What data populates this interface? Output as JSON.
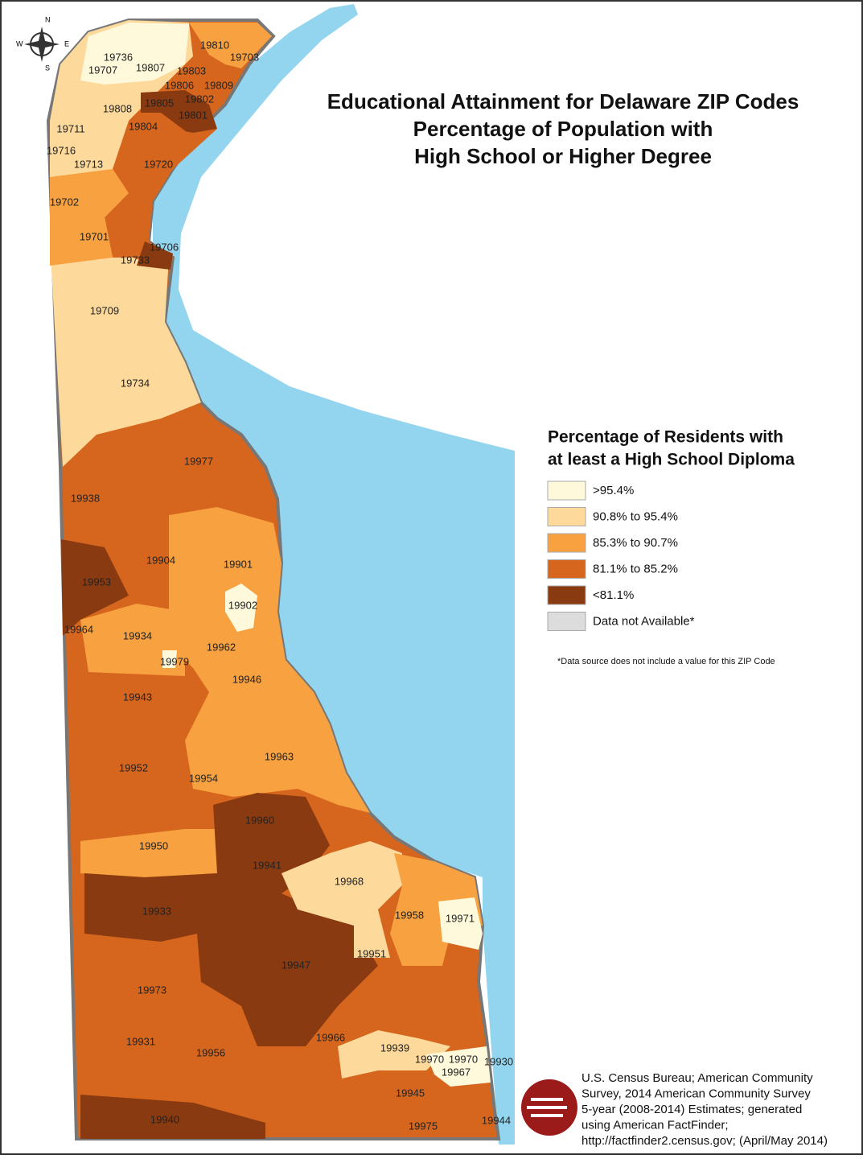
{
  "title": [
    "Educational Attainment for Delaware ZIP Codes",
    "Percentage of Population with",
    "High School or Higher Degree"
  ],
  "legend": {
    "title": [
      "Percentage of Residents with",
      "at least a High School Diploma"
    ],
    "items": [
      {
        "label": ">95.4%",
        "color": "#fff9dc"
      },
      {
        "label": "90.8% to 95.4%",
        "color": "#fdd99b"
      },
      {
        "label": "85.3% to 90.7%",
        "color": "#f7a140"
      },
      {
        "label": "81.1% to 85.2%",
        "color": "#d6661e"
      },
      {
        "label": "<81.1%",
        "color": "#8a3a10"
      },
      {
        "label": "Data not Available*",
        "color": "#dcdcdc"
      }
    ],
    "note": "*Data source does not include a value for this ZIP Code"
  },
  "source": [
    "U.S. Census Bureau; American Community",
    "Survey, 2014 American Community Survey",
    "5-year (2008-2014) Estimates; generated",
    "using American FactFinder;",
    "http://factfinder2.census.gov; (April/May 2014)"
  ],
  "compass": [
    "N",
    "E",
    "S",
    "W"
  ],
  "zip_labels": [
    "19810",
    "19703",
    "19736",
    "19707",
    "19807",
    "19803",
    "19806",
    "19809",
    "19805",
    "19802",
    "19808",
    "19801",
    "19711",
    "19804",
    "19716",
    "19713",
    "19720",
    "19702",
    "19701",
    "19706",
    "19733",
    "19709",
    "19734",
    "19977",
    "19938",
    "19904",
    "19901",
    "19953",
    "19902",
    "19964",
    "19934",
    "19962",
    "19979",
    "19946",
    "19943",
    "19963",
    "19952",
    "19954",
    "19960",
    "19950",
    "19941",
    "19968",
    "19933",
    "19958",
    "19971",
    "19951",
    "19947",
    "19973",
    "19966",
    "19931",
    "19939",
    "19956",
    "19970",
    "19970",
    "19930",
    "19967",
    "19945",
    "19940",
    "19944",
    "19975"
  ]
}
